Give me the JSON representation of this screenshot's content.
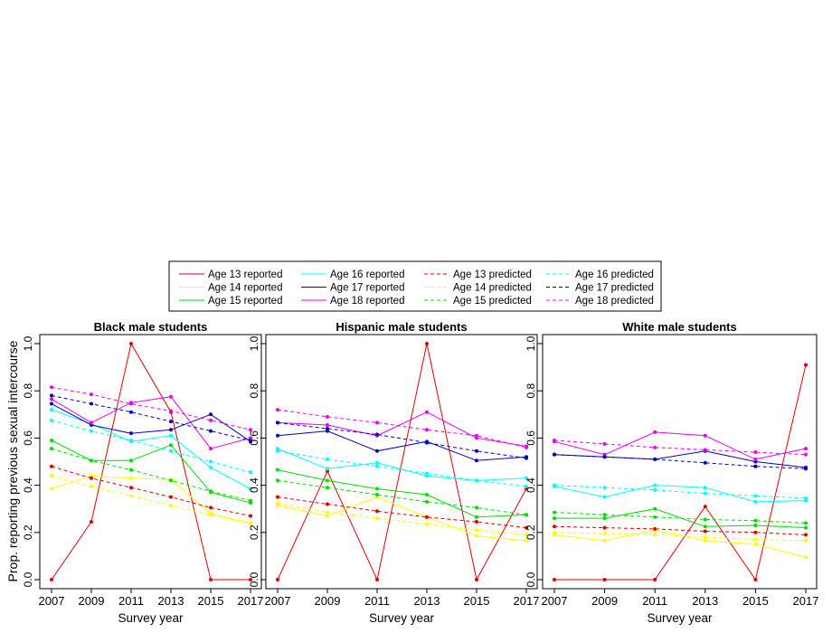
{
  "figure": {
    "ylabel": "Prop. reporting previous sexual intercourse",
    "xlabel": "Survey year"
  },
  "legend": {
    "entries": [
      {
        "label": "Age 13 reported",
        "color": "#DF0000",
        "dash": "solid"
      },
      {
        "label": "Age 14 reported",
        "color": "#FFFF00",
        "dash": "solid"
      },
      {
        "label": "Age 15 reported",
        "color": "#00DD00",
        "dash": "solid"
      },
      {
        "label": "Age 16 reported",
        "color": "#00FFFF",
        "dash": "solid"
      },
      {
        "label": "Age 17 reported",
        "color": "#0000BB",
        "dash": "solid"
      },
      {
        "label": "Age 18 reported",
        "color": "#EE00EE",
        "dash": "solid"
      },
      {
        "label": "Age 13 predicted",
        "color": "#DF0000",
        "dash": "dashed"
      },
      {
        "label": "Age 14 predicted",
        "color": "#FFFF00",
        "dash": "dashed"
      },
      {
        "label": "Age 15 predicted",
        "color": "#00DD00",
        "dash": "dashed"
      },
      {
        "label": "Age 16 predicted",
        "color": "#00FFFF",
        "dash": "dashed"
      },
      {
        "label": "Age 17 predicted",
        "color": "#0000BB",
        "dash": "dashed"
      },
      {
        "label": "Age 18 predicted",
        "color": "#EE00EE",
        "dash": "dashed"
      }
    ]
  },
  "chart_data": [
    {
      "type": "line",
      "title": "Black male students",
      "xlabel": "Survey year",
      "ylabel": "Prop. reporting previous sexual intercourse",
      "x": [
        2007,
        2009,
        2011,
        2013,
        2015,
        2017
      ],
      "xticks": [
        "2007",
        "2009",
        "2011",
        "2013",
        "2015",
        "2017"
      ],
      "ylim": [
        0,
        1
      ],
      "yticks": [
        "0.0",
        "0.2",
        "0.4",
        "0.6",
        "0.8",
        "1.0"
      ],
      "series": [
        {
          "name": "Age 13 reported",
          "values": [
            0.0,
            0.245,
            1.0,
            0.71,
            0.0,
            0.0
          ]
        },
        {
          "name": "Age 14 reported",
          "values": [
            0.385,
            0.44,
            0.43,
            0.425,
            0.28,
            0.24
          ]
        },
        {
          "name": "Age 15 reported",
          "values": [
            0.59,
            0.505,
            0.505,
            0.57,
            0.37,
            0.325
          ]
        },
        {
          "name": "Age 16 reported",
          "values": [
            0.72,
            0.66,
            0.585,
            0.61,
            0.475,
            0.385
          ]
        },
        {
          "name": "Age 17 reported",
          "values": [
            0.745,
            0.655,
            0.62,
            0.635,
            0.7,
            0.585
          ]
        },
        {
          "name": "Age 18 reported",
          "values": [
            0.765,
            0.665,
            0.75,
            0.775,
            0.555,
            0.6
          ]
        },
        {
          "name": "Age 13 predicted",
          "values": [
            0.48,
            0.43,
            0.39,
            0.35,
            0.305,
            0.27
          ]
        },
        {
          "name": "Age 14 predicted",
          "values": [
            0.44,
            0.395,
            0.355,
            0.315,
            0.275,
            0.235
          ]
        },
        {
          "name": "Age 15 predicted",
          "values": [
            0.555,
            0.505,
            0.465,
            0.42,
            0.375,
            0.335
          ]
        },
        {
          "name": "Age 16 predicted",
          "values": [
            0.675,
            0.63,
            0.59,
            0.545,
            0.5,
            0.455
          ]
        },
        {
          "name": "Age 17 predicted",
          "values": [
            0.78,
            0.745,
            0.71,
            0.67,
            0.63,
            0.59
          ]
        },
        {
          "name": "Age 18 predicted",
          "values": [
            0.815,
            0.785,
            0.745,
            0.715,
            0.675,
            0.635
          ]
        }
      ]
    },
    {
      "type": "line",
      "title": "Hispanic male students",
      "xlabel": "Survey year",
      "x": [
        2007,
        2009,
        2011,
        2013,
        2015,
        2017
      ],
      "xticks": [
        "2007",
        "2009",
        "2011",
        "2013",
        "2015",
        "2017"
      ],
      "ylim": [
        0,
        1
      ],
      "yticks": [
        "0.0",
        "0.2",
        "0.4",
        "0.6",
        "0.8",
        "1.0"
      ],
      "series": [
        {
          "name": "Age 13 reported",
          "values": [
            0.0,
            0.46,
            0.0,
            1.0,
            0.0,
            0.385
          ]
        },
        {
          "name": "Age 14 reported",
          "values": [
            0.315,
            0.27,
            0.35,
            0.265,
            0.185,
            0.165
          ]
        },
        {
          "name": "Age 15 reported",
          "values": [
            0.465,
            0.42,
            0.385,
            0.36,
            0.265,
            0.275
          ]
        },
        {
          "name": "Age 16 reported",
          "values": [
            0.555,
            0.47,
            0.495,
            0.44,
            0.42,
            0.43
          ]
        },
        {
          "name": "Age 17 reported",
          "values": [
            0.61,
            0.63,
            0.545,
            0.585,
            0.505,
            0.52
          ]
        },
        {
          "name": "Age 18 reported",
          "values": [
            0.665,
            0.655,
            0.61,
            0.71,
            0.6,
            0.565
          ]
        },
        {
          "name": "Age 13 predicted",
          "values": [
            0.35,
            0.32,
            0.29,
            0.265,
            0.245,
            0.22
          ]
        },
        {
          "name": "Age 14 predicted",
          "values": [
            0.325,
            0.285,
            0.26,
            0.235,
            0.21,
            0.19
          ]
        },
        {
          "name": "Age 15 predicted",
          "values": [
            0.42,
            0.39,
            0.36,
            0.33,
            0.305,
            0.275
          ]
        },
        {
          "name": "Age 16 predicted",
          "values": [
            0.545,
            0.51,
            0.48,
            0.45,
            0.42,
            0.395
          ]
        },
        {
          "name": "Age 17 predicted",
          "values": [
            0.665,
            0.64,
            0.615,
            0.58,
            0.545,
            0.515
          ]
        },
        {
          "name": "Age 18 predicted",
          "values": [
            0.72,
            0.69,
            0.665,
            0.635,
            0.61,
            0.56
          ]
        }
      ]
    },
    {
      "type": "line",
      "title": "White male students",
      "xlabel": "Survey year",
      "x": [
        2007,
        2009,
        2011,
        2013,
        2015,
        2017
      ],
      "xticks": [
        "2007",
        "2009",
        "2011",
        "2013",
        "2015",
        "2017"
      ],
      "ylim": [
        0,
        1
      ],
      "yticks": [
        "0.0",
        "0.2",
        "0.4",
        "0.6",
        "0.8",
        "1.0"
      ],
      "series": [
        {
          "name": "Age 13 reported",
          "values": [
            0.0,
            0.0,
            0.0,
            0.31,
            0.0,
            0.91
          ]
        },
        {
          "name": "Age 14 reported",
          "values": [
            0.19,
            0.165,
            0.21,
            0.165,
            0.15,
            0.095
          ]
        },
        {
          "name": "Age 15 reported",
          "values": [
            0.26,
            0.26,
            0.3,
            0.225,
            0.23,
            0.22
          ]
        },
        {
          "name": "Age 16 reported",
          "values": [
            0.395,
            0.35,
            0.4,
            0.39,
            0.33,
            0.335
          ]
        },
        {
          "name": "Age 17 reported",
          "values": [
            0.53,
            0.52,
            0.51,
            0.545,
            0.5,
            0.475
          ]
        },
        {
          "name": "Age 18 reported",
          "values": [
            0.585,
            0.53,
            0.625,
            0.61,
            0.51,
            0.555
          ]
        },
        {
          "name": "Age 13 predicted",
          "values": [
            0.225,
            0.22,
            0.215,
            0.205,
            0.2,
            0.19
          ]
        },
        {
          "name": "Age 14 predicted",
          "values": [
            0.2,
            0.195,
            0.19,
            0.18,
            0.17,
            0.165
          ]
        },
        {
          "name": "Age 15 predicted",
          "values": [
            0.285,
            0.275,
            0.265,
            0.255,
            0.25,
            0.24
          ]
        },
        {
          "name": "Age 16 predicted",
          "values": [
            0.4,
            0.39,
            0.38,
            0.365,
            0.355,
            0.345
          ]
        },
        {
          "name": "Age 17 predicted",
          "values": [
            0.53,
            0.52,
            0.51,
            0.495,
            0.48,
            0.47
          ]
        },
        {
          "name": "Age 18 predicted",
          "values": [
            0.59,
            0.575,
            0.56,
            0.55,
            0.54,
            0.53
          ]
        }
      ]
    }
  ]
}
